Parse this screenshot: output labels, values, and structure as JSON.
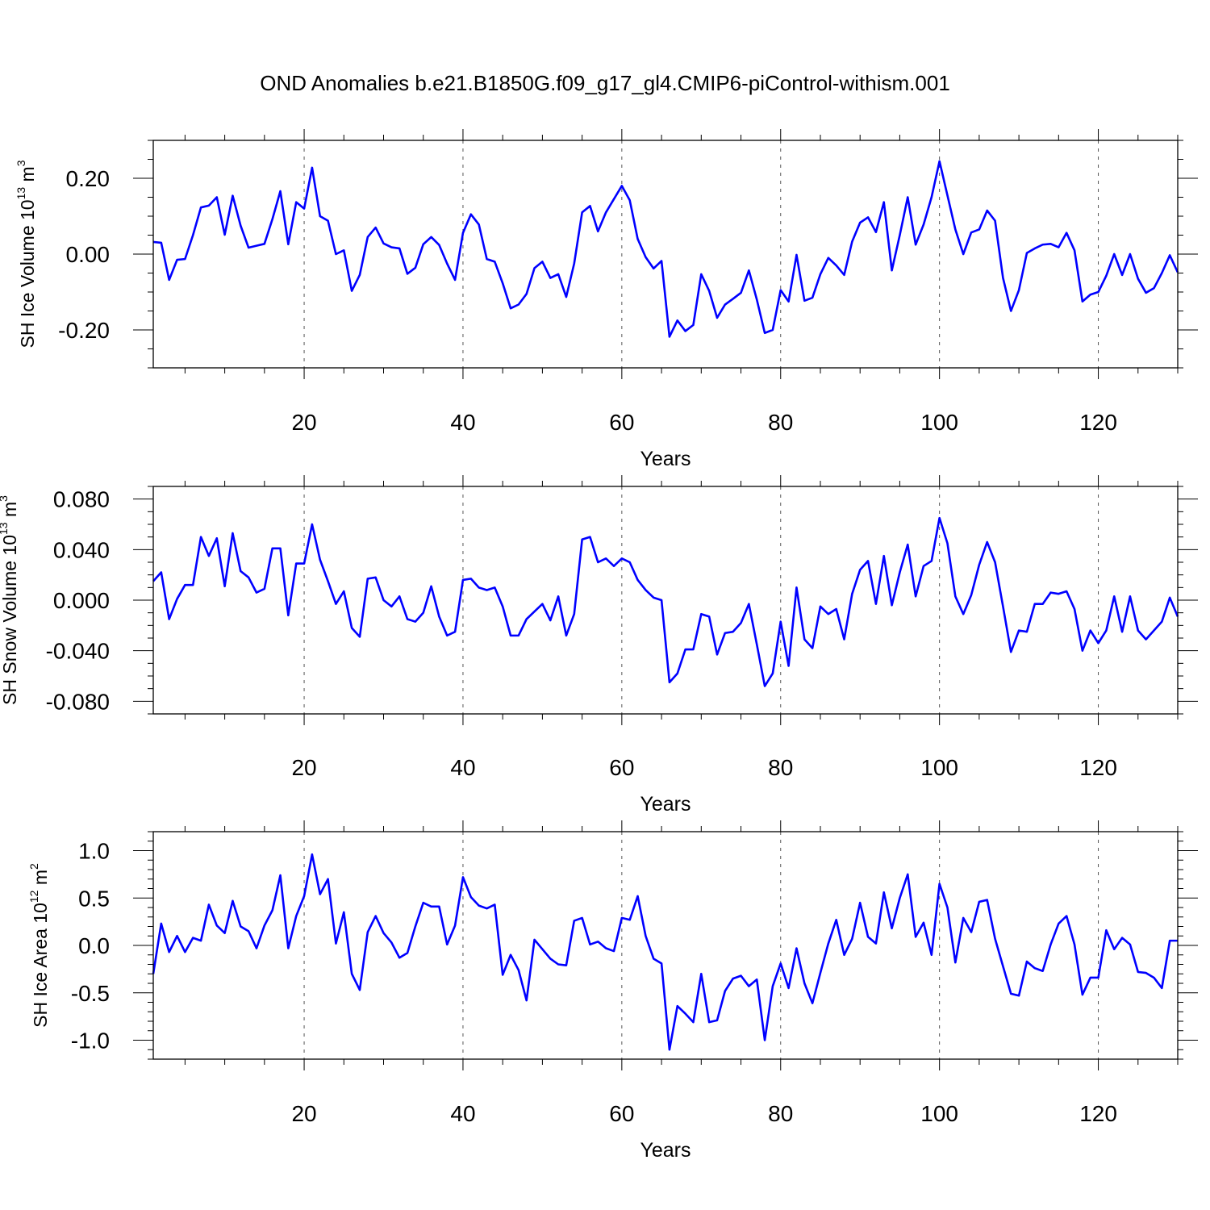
{
  "title": "OND Anomalies b.e21.B1850G.f09_g17_gl4.CMIP6-piControl-withism.001",
  "colors": {
    "line": "#0000ff",
    "axis": "#000000",
    "grid": "#555555"
  },
  "chart_data": [
    {
      "type": "line",
      "ylabel": {
        "main": "SH Ice Volume 10",
        "exp": "13",
        "unit": " m",
        "unit_exp": "3"
      },
      "xlabel": "Years",
      "xlim": [
        1,
        130
      ],
      "ylim": [
        -0.3,
        0.3
      ],
      "xticks": [
        20,
        40,
        60,
        80,
        100,
        120
      ],
      "xtick_labels": [
        "20",
        "40",
        "60",
        "80",
        "100",
        "120"
      ],
      "yticks": [
        0.2,
        0.0,
        -0.2
      ],
      "ytick_labels": [
        "0.20",
        "0.00",
        "-0.20"
      ],
      "yminor_step": 0.05,
      "series": [
        {
          "name": "SH Ice Volume",
          "x_start": 1,
          "values": [
            0.032,
            0.03,
            -0.068,
            -0.015,
            -0.013,
            0.05,
            0.123,
            0.128,
            0.15,
            0.051,
            0.154,
            0.075,
            0.017,
            0.022,
            0.027,
            0.092,
            0.166,
            0.026,
            0.137,
            0.12,
            0.228,
            0.1,
            0.088,
            0.0,
            0.01,
            -0.097,
            -0.055,
            0.045,
            0.07,
            0.028,
            0.018,
            0.015,
            -0.052,
            -0.036,
            0.026,
            0.045,
            0.024,
            -0.025,
            -0.068,
            0.056,
            0.105,
            0.078,
            -0.013,
            -0.02,
            -0.077,
            -0.143,
            -0.133,
            -0.105,
            -0.037,
            -0.02,
            -0.063,
            -0.053,
            -0.113,
            -0.025,
            0.11,
            0.127,
            0.06,
            0.11,
            0.145,
            0.18,
            0.142,
            0.04,
            -0.008,
            -0.038,
            -0.018,
            -0.218,
            -0.175,
            -0.203,
            -0.187,
            -0.053,
            -0.097,
            -0.168,
            -0.133,
            -0.118,
            -0.102,
            -0.043,
            -0.12,
            -0.208,
            -0.2,
            -0.095,
            -0.125,
            -0.002,
            -0.123,
            -0.115,
            -0.053,
            -0.01,
            -0.03,
            -0.055,
            0.033,
            0.083,
            0.097,
            0.058,
            0.137,
            -0.043,
            0.05,
            0.15,
            0.025,
            0.078,
            0.15,
            0.245,
            0.155,
            0.065,
            0.0,
            0.057,
            0.065,
            0.115,
            0.088,
            -0.063,
            -0.15,
            -0.095,
            0.003,
            0.015,
            0.025,
            0.027,
            0.018,
            0.056,
            0.01,
            -0.125,
            -0.107,
            -0.1,
            -0.057,
            0.0,
            -0.055,
            0.0,
            -0.065,
            -0.102,
            -0.09,
            -0.05,
            -0.003,
            -0.048
          ]
        }
      ]
    },
    {
      "type": "line",
      "ylabel": {
        "main": "SH Snow Volume 10",
        "exp": "13",
        "unit": " m",
        "unit_exp": "3"
      },
      "xlabel": "Years",
      "xlim": [
        1,
        130
      ],
      "ylim": [
        -0.09,
        0.09
      ],
      "xticks": [
        20,
        40,
        60,
        80,
        100,
        120
      ],
      "xtick_labels": [
        "20",
        "40",
        "60",
        "80",
        "100",
        "120"
      ],
      "yticks": [
        0.08,
        0.04,
        0.0,
        -0.04,
        -0.08
      ],
      "ytick_labels": [
        "0.080",
        "0.040",
        "0.000",
        "-0.040",
        "-0.080"
      ],
      "yminor_step": 0.01,
      "series": [
        {
          "name": "SH Snow Volume",
          "x_start": 1,
          "values": [
            0.015,
            0.022,
            -0.015,
            0.001,
            0.012,
            0.012,
            0.05,
            0.035,
            0.049,
            0.011,
            0.053,
            0.023,
            0.018,
            0.006,
            0.009,
            0.041,
            0.041,
            -0.012,
            0.029,
            0.029,
            0.06,
            0.032,
            0.015,
            -0.003,
            0.007,
            -0.022,
            -0.029,
            0.017,
            0.018,
            0.0,
            -0.005,
            0.003,
            -0.015,
            -0.017,
            -0.01,
            0.011,
            -0.013,
            -0.028,
            -0.025,
            0.016,
            0.017,
            0.01,
            0.008,
            0.01,
            -0.005,
            -0.028,
            -0.028,
            -0.015,
            -0.009,
            -0.003,
            -0.016,
            0.003,
            -0.028,
            -0.011,
            0.048,
            0.05,
            0.03,
            0.033,
            0.027,
            0.033,
            0.03,
            0.016,
            0.008,
            0.002,
            0.0,
            -0.065,
            -0.058,
            -0.039,
            -0.039,
            -0.011,
            -0.013,
            -0.043,
            -0.026,
            -0.025,
            -0.018,
            -0.003,
            -0.035,
            -0.068,
            -0.058,
            -0.017,
            -0.052,
            0.01,
            -0.031,
            -0.038,
            -0.005,
            -0.011,
            -0.007,
            -0.031,
            0.005,
            0.024,
            0.031,
            -0.003,
            0.035,
            -0.004,
            0.022,
            0.044,
            0.003,
            0.027,
            0.031,
            0.065,
            0.045,
            0.003,
            -0.011,
            0.004,
            0.028,
            0.046,
            0.03,
            -0.005,
            -0.041,
            -0.024,
            -0.025,
            -0.003,
            -0.003,
            0.006,
            0.005,
            0.007,
            -0.007,
            -0.04,
            -0.024,
            -0.034,
            -0.024,
            0.003,
            -0.025,
            0.003,
            -0.024,
            -0.031,
            -0.024,
            -0.017,
            0.002,
            -0.013
          ]
        }
      ]
    },
    {
      "type": "line",
      "ylabel": {
        "main": "SH Ice Area 10",
        "exp": "12",
        "unit": " m",
        "unit_exp": "2"
      },
      "xlabel": "Years",
      "xlim": [
        1,
        130
      ],
      "ylim": [
        -1.2,
        1.2
      ],
      "xticks": [
        20,
        40,
        60,
        80,
        100,
        120
      ],
      "xtick_labels": [
        "20",
        "40",
        "60",
        "80",
        "100",
        "120"
      ],
      "yticks": [
        1.0,
        0.5,
        0.0,
        -0.5,
        -1.0
      ],
      "ytick_labels": [
        "1.0",
        "0.5",
        "0.0",
        "-0.5",
        "-1.0"
      ],
      "yminor_step": 0.1,
      "series": [
        {
          "name": "SH Ice Area",
          "x_start": 1,
          "values": [
            -0.3,
            0.23,
            -0.07,
            0.1,
            -0.07,
            0.08,
            0.05,
            0.43,
            0.21,
            0.13,
            0.47,
            0.2,
            0.15,
            -0.03,
            0.21,
            0.37,
            0.74,
            -0.03,
            0.31,
            0.52,
            0.96,
            0.54,
            0.7,
            0.02,
            0.35,
            -0.3,
            -0.47,
            0.14,
            0.31,
            0.13,
            0.03,
            -0.13,
            -0.08,
            0.2,
            0.45,
            0.41,
            0.41,
            0.01,
            0.21,
            0.72,
            0.51,
            0.42,
            0.39,
            0.43,
            -0.31,
            -0.1,
            -0.26,
            -0.58,
            0.06,
            -0.04,
            -0.14,
            -0.2,
            -0.21,
            0.26,
            0.29,
            0.01,
            0.04,
            -0.03,
            -0.06,
            0.29,
            0.27,
            0.52,
            0.1,
            -0.14,
            -0.19,
            -1.1,
            -0.64,
            -0.72,
            -0.81,
            -0.3,
            -0.81,
            -0.79,
            -0.48,
            -0.35,
            -0.32,
            -0.43,
            -0.36,
            -1.0,
            -0.43,
            -0.19,
            -0.45,
            -0.03,
            -0.4,
            -0.61,
            -0.29,
            0.02,
            0.27,
            -0.1,
            0.07,
            0.45,
            0.09,
            0.02,
            0.56,
            0.18,
            0.5,
            0.75,
            0.09,
            0.24,
            -0.1,
            0.65,
            0.4,
            -0.18,
            0.29,
            0.14,
            0.46,
            0.48,
            0.07,
            -0.22,
            -0.51,
            -0.53,
            -0.17,
            -0.24,
            -0.27,
            0.01,
            0.23,
            0.31,
            0.01,
            -0.52,
            -0.34,
            -0.34,
            0.16,
            -0.04,
            0.08,
            0.01,
            -0.28,
            -0.29,
            -0.34,
            -0.45,
            0.05,
            0.05
          ]
        }
      ]
    }
  ]
}
